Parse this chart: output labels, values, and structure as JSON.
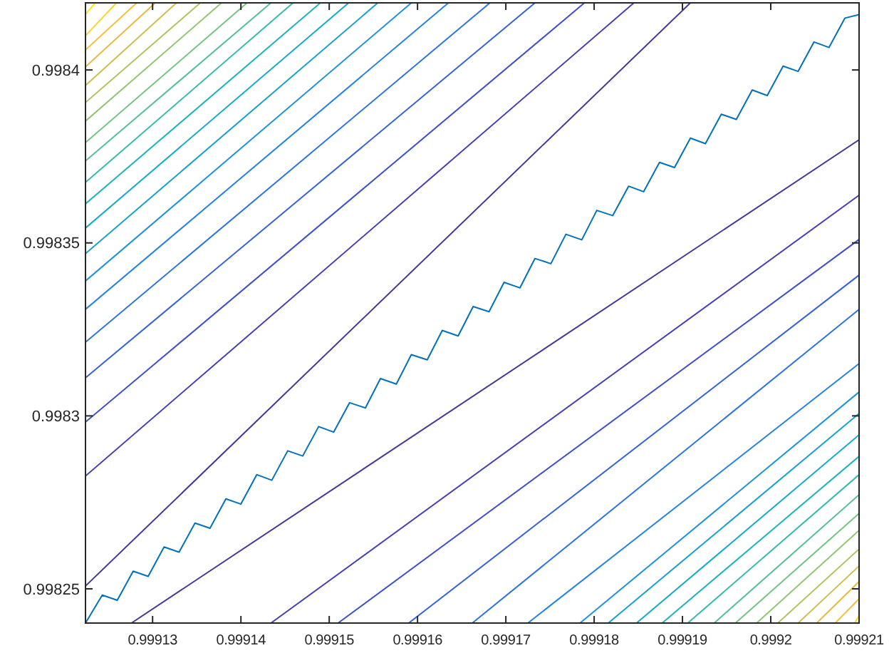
{
  "chart_data": {
    "type": "line",
    "xlim": [
      0.9991224,
      0.99921
    ],
    "ylim": [
      0.9982401,
      0.9984194
    ],
    "xticks": [
      0.99913,
      0.99914,
      0.99915,
      0.99916,
      0.99917,
      0.99918,
      0.99919,
      0.9992,
      0.99921
    ],
    "yticks": [
      0.99825,
      0.9983,
      0.99835,
      0.9984
    ],
    "series": [
      {
        "color": "#f5ea1f",
        "x": [
          0.9991224,
          0.9991235
        ],
        "values": [
          0.9984161,
          0.9984194
        ]
      },
      {
        "color": "#f8d52d",
        "x": [
          0.9991224,
          0.9991259
        ],
        "values": [
          0.9984099,
          0.9984194
        ]
      },
      {
        "color": "#f5c03a",
        "x": [
          0.9991224,
          0.9991282
        ],
        "values": [
          0.9984058,
          0.9984194
        ]
      },
      {
        "color": "#e6ba3f",
        "x": [
          0.9991224,
          0.9991303
        ],
        "values": [
          0.9984009,
          0.9984194
        ]
      },
      {
        "color": "#cfbf4e",
        "x": [
          0.9991224,
          0.9991327
        ],
        "values": [
          0.9983955,
          0.9984194
        ]
      },
      {
        "color": "#b2c35f",
        "x": [
          0.9991224,
          0.9991354
        ],
        "values": [
          0.9983906,
          0.9984194
        ]
      },
      {
        "color": "#92c571",
        "x": [
          0.9991224,
          0.9991378
        ],
        "values": [
          0.9983852,
          0.9984194
        ]
      },
      {
        "color": "#72c483",
        "x": [
          0.9991224,
          0.9991407
        ],
        "values": [
          0.998379,
          0.9984194
        ]
      },
      {
        "color": "#52c196",
        "x": [
          0.9991224,
          0.9991434
        ],
        "values": [
          0.9983737,
          0.9984194
        ]
      },
      {
        "color": "#33bca8",
        "x": [
          0.9991224,
          0.9991459
        ],
        "values": [
          0.9983675,
          0.9984194
        ]
      },
      {
        "color": "#1db5b8",
        "x": [
          0.9991224,
          0.999149
        ],
        "values": [
          0.9983613,
          0.9984194
        ]
      },
      {
        "color": "#12acc6",
        "x": [
          0.9991224,
          0.9991522
        ],
        "values": [
          0.9983543,
          0.9984194
        ]
      },
      {
        "color": "#17a0d2",
        "x": [
          0.9991224,
          0.9991555
        ],
        "values": [
          0.9983469,
          0.9984194
        ]
      },
      {
        "color": "#1d92dd",
        "x": [
          0.9991224,
          0.9991593
        ],
        "values": [
          0.998339,
          0.9984194
        ]
      },
      {
        "color": "#2383e6",
        "x": [
          0.9991224,
          0.9991635
        ],
        "values": [
          0.9983308,
          0.9984194
        ]
      },
      {
        "color": "#2b73e8",
        "x": [
          0.9991224,
          0.9991682
        ],
        "values": [
          0.9983213,
          0.9984194
        ]
      },
      {
        "color": "#3461e0",
        "x": [
          0.9991224,
          0.9991733
        ],
        "values": [
          0.998311,
          0.9984194
        ]
      },
      {
        "color": "#3f4fd0",
        "x": [
          0.9991224,
          0.9991789
        ],
        "values": [
          0.9982982,
          0.9984194
        ]
      },
      {
        "color": "#4540b8",
        "x": [
          0.9991224,
          0.9991845
        ],
        "values": [
          0.9982826,
          0.9984194
        ]
      },
      {
        "color": "#47399c",
        "x": [
          0.9991224,
          0.9991909
        ],
        "values": [
          0.9982508,
          0.9984194
        ]
      },
      {
        "color": "#47399c",
        "x": [
          0.9991276,
          0.99921
        ],
        "values": [
          0.9982401,
          0.9983798
        ]
      },
      {
        "color": "#4540b8",
        "x": [
          0.9991434,
          0.99921
        ],
        "values": [
          0.9982401,
          0.9983638
        ]
      },
      {
        "color": "#3f4fd0",
        "x": [
          0.999151,
          0.99921
        ],
        "values": [
          0.9982401,
          0.998351
        ]
      },
      {
        "color": "#3461e0",
        "x": [
          0.999159,
          0.99921
        ],
        "values": [
          0.9982401,
          0.9983407
        ]
      },
      {
        "color": "#2b73e8",
        "x": [
          0.9991662,
          0.99921
        ],
        "values": [
          0.9982401,
          0.9983308
        ]
      },
      {
        "color": "#2383e6",
        "x": [
          0.9991725,
          0.99921
        ],
        "values": [
          0.9982401,
          0.9983151
        ]
      },
      {
        "color": "#1d92dd",
        "x": [
          0.9991784,
          0.99921
        ],
        "values": [
          0.9982401,
          0.9983069
        ]
      },
      {
        "color": "#17a0d2",
        "x": [
          0.9991816,
          0.99921
        ],
        "values": [
          0.9982401,
          0.9983007
        ]
      },
      {
        "color": "#12acc6",
        "x": [
          0.9991848,
          0.99921
        ],
        "values": [
          0.9982401,
          0.9982945
        ]
      },
      {
        "color": "#1db5b8",
        "x": [
          0.9991877,
          0.99921
        ],
        "values": [
          0.9982401,
          0.9982883
        ]
      },
      {
        "color": "#33bca8",
        "x": [
          0.9991906,
          0.99921
        ],
        "values": [
          0.9982401,
          0.998283
        ]
      },
      {
        "color": "#52c196",
        "x": [
          0.9991936,
          0.99921
        ],
        "values": [
          0.9982401,
          0.9982772
        ]
      },
      {
        "color": "#72c483",
        "x": [
          0.999196,
          0.99921
        ],
        "values": [
          0.9982401,
          0.9982718
        ]
      },
      {
        "color": "#92c571",
        "x": [
          0.9991984,
          0.99921
        ],
        "values": [
          0.9982401,
          0.9982669
        ]
      },
      {
        "color": "#b2c35f",
        "x": [
          0.9992008,
          0.99921
        ],
        "values": [
          0.9982401,
          0.9982615
        ]
      },
      {
        "color": "#cfbf4e",
        "x": [
          0.9992031,
          0.99921
        ],
        "values": [
          0.9982401,
          0.9982566
        ]
      },
      {
        "color": "#e6ba3f",
        "x": [
          0.9992052,
          0.99921
        ],
        "values": [
          0.9982401,
          0.9982521
        ]
      },
      {
        "color": "#f5c03a",
        "x": [
          0.9992073,
          0.99921
        ],
        "values": [
          0.9982401,
          0.9982471
        ]
      },
      {
        "color": "#f8d52d",
        "x": [
          0.9992095,
          0.99921
        ],
        "values": [
          0.9982401,
          0.9982422
        ]
      },
      {
        "color": "#0072bd",
        "x": [
          0.9991225,
          0.9991243,
          0.999126,
          0.9991278,
          0.9991295,
          0.9991313,
          0.999133,
          0.9991348,
          0.9991365,
          0.9991383,
          0.99914,
          0.9991418,
          0.9991435,
          0.9991453,
          0.999147,
          0.9991488,
          0.9991505,
          0.9991523,
          0.9991541,
          0.9991558,
          0.9991576,
          0.9991593,
          0.9991611,
          0.9991628,
          0.9991646,
          0.9991663,
          0.9991681,
          0.9991698,
          0.9991716,
          0.9991733,
          0.9991751,
          0.9991768,
          0.9991786,
          0.9991803,
          0.9991821,
          0.9991839,
          0.9991856,
          0.9991874,
          0.9991891,
          0.9991909,
          0.9991926,
          0.9991944,
          0.9991961,
          0.9991979,
          0.9991996,
          0.9992014,
          0.9992031,
          0.9992049,
          0.9992066,
          0.9992084,
          0.99921
        ],
        "values": [
          0.9982405,
          0.9982482,
          0.9982467,
          0.9982551,
          0.9982536,
          0.9982621,
          0.9982606,
          0.998269,
          0.9982675,
          0.998276,
          0.9982745,
          0.998283,
          0.9982814,
          0.9982899,
          0.9982884,
          0.9982969,
          0.9982953,
          0.9983038,
          0.9983023,
          0.9983108,
          0.9983092,
          0.9983177,
          0.9983162,
          0.9983247,
          0.9983231,
          0.9983316,
          0.9983301,
          0.9983386,
          0.998337,
          0.9983455,
          0.998344,
          0.9983525,
          0.9983509,
          0.9983594,
          0.9983579,
          0.9983664,
          0.9983648,
          0.9983733,
          0.9983718,
          0.9983803,
          0.9983787,
          0.9983872,
          0.9983857,
          0.9983942,
          0.9983926,
          0.9984011,
          0.9983996,
          0.9984081,
          0.9984065,
          0.998415,
          0.998416
        ]
      }
    ]
  }
}
